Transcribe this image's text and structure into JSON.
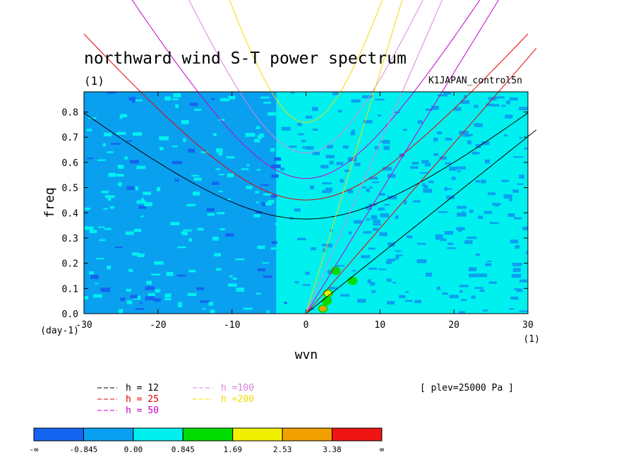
{
  "chart_data": {
    "type": "heatmap",
    "title": "northward wind S-T power spectrum",
    "subtitle": "(1)",
    "experiment": "K1JAPAN_control5n",
    "xlabel": "wvn",
    "ylabel": "freq",
    "x_unit": "(1)",
    "y_unit": "(day-1)",
    "xlim": [
      -30,
      30
    ],
    "ylim": [
      0,
      0.88
    ],
    "x_ticks": [
      "-30",
      "-20",
      "-10",
      "0",
      "10",
      "20",
      "30"
    ],
    "x_tick_values": [
      -30,
      -20,
      -10,
      0,
      10,
      20,
      30
    ],
    "y_ticks": [
      "0.0",
      "0.1",
      "0.2",
      "0.3",
      "0.4",
      "0.5",
      "0.6",
      "0.7",
      "0.8"
    ],
    "y_tick_values": [
      0,
      0.1,
      0.2,
      0.3,
      0.4,
      0.5,
      0.6,
      0.7,
      0.8
    ],
    "annotation": "[ plev=25000 Pa ]",
    "levels": [
      "-∞",
      "-0.845",
      "0.00",
      "0.845",
      "1.69",
      "2.53",
      "3.38",
      "∞"
    ],
    "level_colors": [
      "#1464f0",
      "#0aa0f0",
      "#00f0f0",
      "#00dc00",
      "#f0f000",
      "#f0a000",
      "#f01414"
    ],
    "regions": [
      {
        "name": "westward-band",
        "x_range": [
          -30,
          -4
        ],
        "level_index": 1
      },
      {
        "name": "eastward-band",
        "x_range": [
          -4,
          30
        ],
        "level_index": 2
      }
    ],
    "features": [
      {
        "x": 2.3,
        "y": 0.02,
        "level_index": 5
      },
      {
        "x": 3.0,
        "y": 0.08,
        "level_index": 4
      },
      {
        "x": 2.8,
        "y": 0.05,
        "level_index": 3
      },
      {
        "x": 4.0,
        "y": 0.17,
        "level_index": 3
      },
      {
        "x": 6.3,
        "y": 0.13,
        "level_index": 3
      }
    ],
    "dispersion_curves": {
      "legend": [
        {
          "label": "h = 12",
          "color": "#000000"
        },
        {
          "label": "h = 25",
          "color": "#e60000"
        },
        {
          "label": "h = 50",
          "color": "#c800c8"
        },
        {
          "label": "h =100",
          "color": "#dc82dc"
        },
        {
          "label": "h =200",
          "color": "#f0dc00"
        }
      ]
    }
  },
  "colorbar": {
    "labels": [
      "-∞",
      "-0.845",
      "0.00",
      "0.845",
      "1.69",
      "2.53",
      "3.38",
      "∞"
    ]
  }
}
